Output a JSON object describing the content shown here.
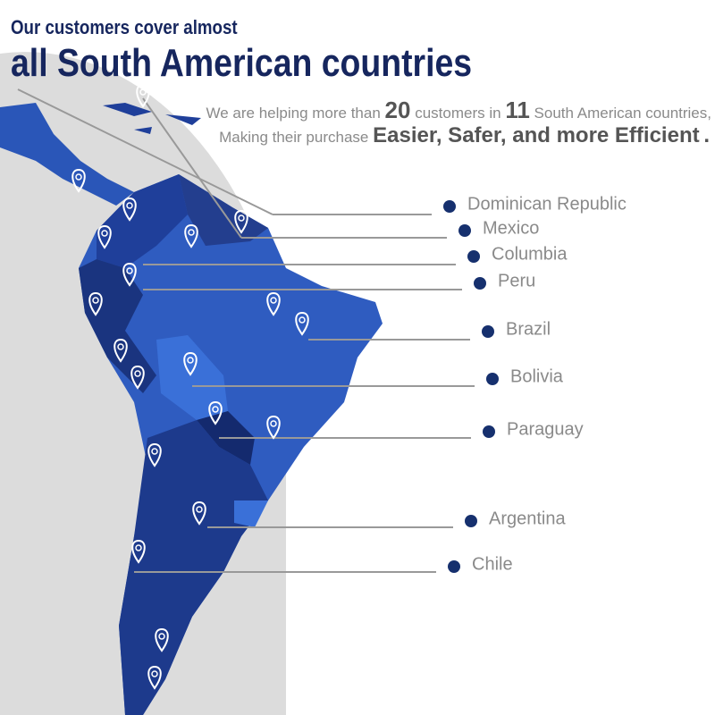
{
  "header": {
    "line1": "Our customers cover almost",
    "line2": "all South American countries"
  },
  "subtitle": {
    "intro": "We are helping more than",
    "customers": 20,
    "middle": "customers in",
    "countries": 11,
    "end": "South American countries,",
    "line2": "Making their purchase",
    "emphasis": "Easier, Safer, and more Efficient",
    "period": "."
  },
  "countries": [
    "Dominican Republic",
    "Mexico",
    "Columbia",
    "Peru",
    "Brazil",
    "Bolivia",
    "Paraguay",
    "Argentina",
    "Chile"
  ]
}
